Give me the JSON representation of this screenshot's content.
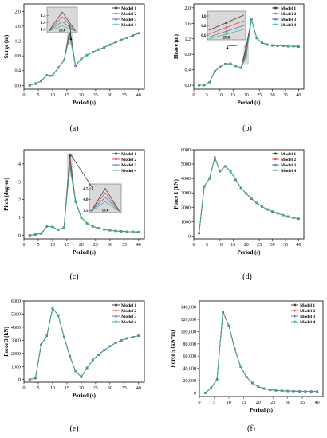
{
  "series_colors": [
    "#333333",
    "#e8453c",
    "#3a6fd8",
    "#39b26e"
  ],
  "chart_data": [
    {
      "id": "a",
      "type": "line",
      "caption": "(a)",
      "xlabel": "Period (s)",
      "ylabel": "Surge (m)",
      "xlim": [
        0,
        42
      ],
      "ylim": [
        -0.1,
        2.2
      ],
      "xticks": [
        0,
        5,
        10,
        15,
        20,
        25,
        30,
        35,
        40
      ],
      "yticks": [
        0.0,
        0.4,
        0.8,
        1.2,
        1.6,
        2.0
      ],
      "ytick_labels": [
        "0.0",
        "0.4",
        "0.8",
        "1.2",
        "1.6",
        "2.0"
      ],
      "x": [
        2,
        4,
        6,
        8,
        9,
        10,
        12,
        14,
        16,
        18,
        20,
        22,
        24,
        26,
        28,
        30,
        32,
        34,
        36,
        38,
        40
      ],
      "series": [
        {
          "name": "Model 1",
          "values": [
            0.0,
            0.05,
            0.12,
            0.28,
            0.26,
            0.27,
            0.48,
            0.68,
            1.52,
            0.53,
            0.72,
            0.82,
            0.9,
            0.97,
            1.03,
            1.1,
            1.17,
            1.23,
            1.29,
            1.35,
            1.41
          ]
        },
        {
          "name": "Model 2",
          "values": [
            0.0,
            0.05,
            0.12,
            0.28,
            0.26,
            0.27,
            0.48,
            0.68,
            1.45,
            0.53,
            0.72,
            0.82,
            0.9,
            0.97,
            1.03,
            1.1,
            1.17,
            1.23,
            1.29,
            1.35,
            1.41
          ]
        },
        {
          "name": "Model 3",
          "values": [
            0.0,
            0.05,
            0.12,
            0.28,
            0.26,
            0.27,
            0.48,
            0.68,
            1.39,
            0.53,
            0.72,
            0.82,
            0.9,
            0.97,
            1.03,
            1.1,
            1.17,
            1.23,
            1.29,
            1.35,
            1.41
          ]
        },
        {
          "name": "Model 4",
          "values": [
            0.0,
            0.05,
            0.12,
            0.28,
            0.26,
            0.27,
            0.48,
            0.68,
            1.33,
            0.53,
            0.72,
            0.82,
            0.9,
            0.97,
            1.03,
            1.1,
            1.17,
            1.23,
            1.29,
            1.35,
            1.41
          ]
        }
      ],
      "legend": [
        "Model 1",
        "Model 2",
        "Model 3",
        "Model 4"
      ],
      "inset": {
        "xlim": [
          14.8,
          17.2
        ],
        "ylim": [
          1.25,
          1.62
        ],
        "x_center": 16,
        "x_tick_label": "16.0",
        "y_ticks": [
          1.3,
          1.4,
          1.5
        ],
        "y_tick_labels": [
          "1.3",
          "1.4",
          "1.5"
        ],
        "peaks": [
          1.55,
          1.48,
          1.41,
          1.35
        ],
        "base": 1.27
      }
    },
    {
      "id": "b",
      "type": "line",
      "caption": "(b)",
      "xlabel": "Period (s)",
      "ylabel": "Heave (m)",
      "xlim": [
        0,
        42
      ],
      "ylim": [
        -0.1,
        2.1
      ],
      "xticks": [
        0,
        5,
        10,
        15,
        20,
        25,
        30,
        35,
        40
      ],
      "yticks": [
        0.0,
        0.4,
        0.8,
        1.2,
        1.6,
        2.0
      ],
      "ytick_labels": [
        "0.0",
        "0.4",
        "0.8",
        "1.2",
        "1.6",
        "2.0"
      ],
      "x": [
        2,
        4,
        6,
        8,
        10,
        12,
        14,
        16,
        18,
        20,
        22,
        24,
        26,
        28,
        30,
        32,
        34,
        36,
        38,
        40
      ],
      "series": [
        {
          "name": "Model 1",
          "values": [
            0.0,
            0.0,
            0.08,
            0.36,
            0.48,
            0.55,
            0.56,
            0.5,
            0.45,
            1.0,
            1.7,
            1.22,
            1.1,
            1.05,
            1.03,
            1.02,
            1.02,
            1.01,
            1.01,
            1.0
          ]
        },
        {
          "name": "Model 2",
          "values": [
            0.0,
            0.0,
            0.08,
            0.36,
            0.48,
            0.55,
            0.56,
            0.5,
            0.45,
            0.9,
            1.7,
            1.22,
            1.1,
            1.05,
            1.03,
            1.02,
            1.02,
            1.01,
            1.01,
            1.0
          ]
        },
        {
          "name": "Model 3",
          "values": [
            0.0,
            0.0,
            0.08,
            0.36,
            0.48,
            0.55,
            0.56,
            0.5,
            0.45,
            0.82,
            1.7,
            1.22,
            1.1,
            1.05,
            1.03,
            1.02,
            1.02,
            1.01,
            1.01,
            1.0
          ]
        },
        {
          "name": "Model 4",
          "values": [
            0.0,
            0.0,
            0.08,
            0.36,
            0.48,
            0.55,
            0.56,
            0.5,
            0.45,
            0.75,
            1.7,
            1.22,
            1.1,
            1.05,
            1.03,
            1.02,
            1.02,
            1.01,
            1.01,
            1.0
          ]
        }
      ],
      "legend": [
        "Model 1",
        "Model 2",
        "Model 3",
        "Model 4"
      ],
      "inset": {
        "xlim": [
          18.6,
          21.4
        ],
        "ylim": [
          0.5,
          1.1
        ],
        "x_center": 20,
        "x_tick_label": "20.0",
        "y_ticks": [
          0.6,
          0.8,
          1.0
        ],
        "y_tick_labels": [
          "0.6",
          "0.8",
          "1.0"
        ],
        "lines": [
          [
            0.7,
            1.02
          ],
          [
            0.62,
            0.9
          ],
          [
            0.56,
            0.8
          ],
          [
            0.52,
            0.72
          ]
        ]
      }
    },
    {
      "id": "c",
      "type": "line",
      "caption": "(c)",
      "xlabel": "Period (s)",
      "ylabel": "Pitch (degree)",
      "xlim": [
        0,
        42
      ],
      "ylim": [
        -0.2,
        4.8
      ],
      "xticks": [
        0,
        5,
        10,
        15,
        20,
        25,
        30,
        35,
        40
      ],
      "yticks": [
        0,
        1,
        2,
        3,
        4
      ],
      "ytick_labels": [
        "0",
        "1",
        "2",
        "3",
        "4"
      ],
      "x": [
        2,
        4,
        6,
        8,
        10,
        12,
        14,
        16,
        18,
        20,
        22,
        24,
        26,
        28,
        30,
        32,
        34,
        36,
        38,
        40
      ],
      "series": [
        {
          "name": "Model 1",
          "values": [
            0.0,
            0.05,
            0.1,
            0.5,
            0.48,
            0.32,
            0.45,
            4.45,
            1.9,
            1.0,
            0.68,
            0.5,
            0.4,
            0.33,
            0.28,
            0.25,
            0.23,
            0.21,
            0.2,
            0.19
          ]
        },
        {
          "name": "Model 2",
          "values": [
            0.0,
            0.05,
            0.1,
            0.5,
            0.48,
            0.32,
            0.45,
            4.25,
            1.9,
            1.0,
            0.68,
            0.5,
            0.4,
            0.33,
            0.28,
            0.25,
            0.23,
            0.21,
            0.2,
            0.19
          ]
        },
        {
          "name": "Model 3",
          "values": [
            0.0,
            0.05,
            0.1,
            0.5,
            0.48,
            0.32,
            0.45,
            4.05,
            1.9,
            1.0,
            0.68,
            0.5,
            0.4,
            0.33,
            0.28,
            0.25,
            0.23,
            0.21,
            0.2,
            0.19
          ]
        },
        {
          "name": "Model 4",
          "values": [
            0.0,
            0.05,
            0.1,
            0.5,
            0.48,
            0.32,
            0.45,
            3.85,
            1.9,
            1.0,
            0.68,
            0.5,
            0.4,
            0.33,
            0.28,
            0.25,
            0.23,
            0.21,
            0.2,
            0.19
          ]
        }
      ],
      "legend": [
        "Model 1",
        "Model 2",
        "Model 3",
        "Model 4"
      ],
      "inset": {
        "xlim": [
          14.8,
          17.2
        ],
        "ylim": [
          3.4,
          4.7
        ],
        "x_center": 16,
        "x_tick_label": "16.0",
        "y_ticks": [
          3.5,
          4.0,
          4.5
        ],
        "y_tick_labels": [
          "3.5",
          "4.0",
          "4.5"
        ],
        "peaks": [
          4.5,
          4.3,
          4.1,
          3.9
        ],
        "base": 3.45
      }
    },
    {
      "id": "d",
      "type": "line",
      "caption": "(d)",
      "xlabel": "Period (s)",
      "ylabel": "Force 1 (kN)",
      "xlim": [
        0,
        42
      ],
      "ylim": [
        -200,
        6000
      ],
      "xticks": [
        0,
        5,
        10,
        15,
        20,
        25,
        30,
        35,
        40
      ],
      "yticks": [
        0,
        1000,
        2000,
        3000,
        4000,
        5000,
        6000
      ],
      "ytick_labels": [
        "0",
        "1000",
        "2000",
        "3000",
        "4000",
        "5000",
        "6000"
      ],
      "x": [
        2,
        4,
        6,
        8,
        10,
        12,
        14,
        16,
        18,
        20,
        22,
        24,
        26,
        28,
        30,
        32,
        34,
        36,
        38,
        40
      ],
      "series": [
        {
          "name": "Model 1",
          "values": [
            200,
            3450,
            4000,
            5450,
            4500,
            4850,
            4500,
            3900,
            3350,
            2950,
            2600,
            2300,
            2050,
            1850,
            1700,
            1580,
            1450,
            1350,
            1270,
            1200
          ]
        },
        {
          "name": "Model 2",
          "values": [
            200,
            3450,
            4000,
            5450,
            4500,
            4850,
            4500,
            3900,
            3350,
            2950,
            2600,
            2300,
            2050,
            1850,
            1700,
            1580,
            1450,
            1350,
            1270,
            1200
          ]
        },
        {
          "name": "Model 3",
          "values": [
            200,
            3450,
            4000,
            5450,
            4500,
            4850,
            4500,
            3900,
            3350,
            2950,
            2600,
            2300,
            2050,
            1850,
            1700,
            1580,
            1450,
            1350,
            1270,
            1200
          ]
        },
        {
          "name": "Model 4",
          "values": [
            200,
            3450,
            4000,
            5450,
            4500,
            4850,
            4500,
            3900,
            3350,
            2950,
            2600,
            2300,
            2050,
            1850,
            1700,
            1580,
            1450,
            1350,
            1270,
            1200
          ]
        }
      ],
      "legend": [
        "Model 1",
        "Model 2",
        "Model 3",
        "Model 4"
      ]
    },
    {
      "id": "e",
      "type": "line",
      "caption": "(e)",
      "xlabel": "Period (s)",
      "ylabel": "Force 3 (kN)",
      "xlim": [
        0,
        42
      ],
      "ylim": [
        -200,
        6000
      ],
      "xticks": [
        0,
        5,
        10,
        15,
        20,
        25,
        30,
        35,
        40
      ],
      "yticks": [
        0,
        1000,
        2000,
        3000,
        4000,
        5000,
        6000
      ],
      "ytick_labels": [
        "0",
        "1000",
        "2000",
        "3000",
        "4000",
        "5000",
        "6000"
      ],
      "x": [
        2,
        4,
        6,
        8,
        10,
        12,
        14,
        16,
        18,
        20,
        22,
        24,
        26,
        28,
        30,
        32,
        34,
        36,
        38,
        40
      ],
      "series": [
        {
          "name": "Model 1",
          "values": [
            0,
            100,
            2650,
            3350,
            5450,
            4900,
            3250,
            1800,
            650,
            200,
            900,
            1500,
            1900,
            2250,
            2550,
            2800,
            3000,
            3150,
            3250,
            3350
          ]
        },
        {
          "name": "Model 2",
          "values": [
            0,
            100,
            2650,
            3350,
            5450,
            4900,
            3250,
            1800,
            650,
            200,
            900,
            1500,
            1900,
            2250,
            2550,
            2800,
            3000,
            3150,
            3250,
            3350
          ]
        },
        {
          "name": "Model 3",
          "values": [
            0,
            100,
            2650,
            3350,
            5450,
            4900,
            3250,
            1800,
            650,
            200,
            900,
            1500,
            1900,
            2250,
            2550,
            2800,
            3000,
            3150,
            3250,
            3350
          ]
        },
        {
          "name": "Model 4",
          "values": [
            0,
            100,
            2650,
            3350,
            5450,
            4900,
            3250,
            1800,
            650,
            200,
            900,
            1500,
            1900,
            2250,
            2550,
            2800,
            3000,
            3150,
            3250,
            3350
          ]
        }
      ],
      "legend": [
        "Model 1",
        "Model 2",
        "Model 3",
        "Model 4"
      ]
    },
    {
      "id": "f",
      "type": "line",
      "caption": "(f)",
      "xlabel": "Period (s)",
      "ylabel": "Force 5 (kN*m)",
      "xlim": [
        0,
        42
      ],
      "ylim": [
        -6000,
        150000
      ],
      "xticks": [
        0,
        5,
        10,
        15,
        20,
        25,
        30,
        35,
        40
      ],
      "yticks": [
        0,
        20000,
        40000,
        60000,
        80000,
        100000,
        120000,
        140000
      ],
      "ytick_labels": [
        "0",
        "20,000",
        "40,000",
        "60,000",
        "80,000",
        "100,000",
        "120,000",
        "140,000"
      ],
      "x": [
        2,
        4,
        6,
        8,
        10,
        12,
        14,
        16,
        18,
        20,
        22,
        24,
        26,
        28,
        30,
        32,
        34,
        36,
        38,
        40
      ],
      "series": [
        {
          "name": "Model 1",
          "values": [
            0,
            8000,
            22000,
            132000,
            110000,
            72000,
            43000,
            26000,
            16000,
            10000,
            7000,
            5000,
            4000,
            3500,
            3000,
            2800,
            2600,
            2500,
            2400,
            2300
          ]
        },
        {
          "name": "Model 2",
          "values": [
            0,
            8000,
            22000,
            132000,
            110000,
            72000,
            43000,
            26000,
            16000,
            10000,
            7000,
            5000,
            4000,
            3500,
            3000,
            2800,
            2600,
            2500,
            2400,
            2300
          ]
        },
        {
          "name": "Model 3",
          "values": [
            0,
            8000,
            22000,
            132000,
            110000,
            72000,
            43000,
            26000,
            16000,
            10000,
            7000,
            5000,
            4000,
            3500,
            3000,
            2800,
            2600,
            2500,
            2400,
            2300
          ]
        },
        {
          "name": "Model 4",
          "values": [
            0,
            8000,
            22000,
            132000,
            110000,
            72000,
            43000,
            26000,
            16000,
            10000,
            7000,
            5000,
            4000,
            3500,
            3000,
            2800,
            2600,
            2500,
            2400,
            2300
          ]
        }
      ],
      "legend": [
        "Model 1",
        "Model 2",
        "Model 3",
        "Model 4"
      ]
    }
  ]
}
